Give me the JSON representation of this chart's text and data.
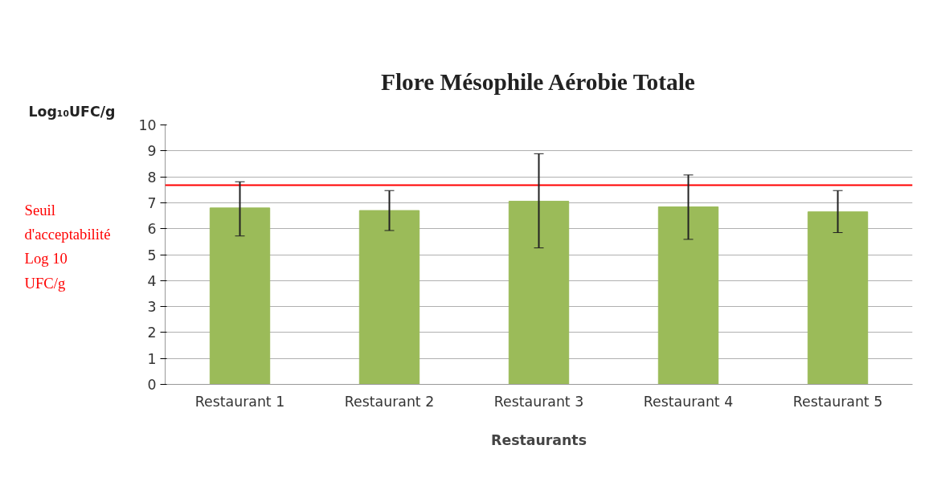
{
  "chart_data": {
    "type": "bar",
    "title": "Flore Mésophile Aérobie Totale",
    "xlabel": "Restaurants",
    "ylabel": "Log₁₀UFC/g",
    "categories": [
      "Restaurant 1",
      "Restaurant 2",
      "Restaurant 3",
      "Restaurant 4",
      "Restaurant 5"
    ],
    "values": [
      6.8,
      6.7,
      7.06,
      6.84,
      6.65
    ],
    "color": "#9bbb59",
    "errors": [
      [
        5.72,
        7.81
      ],
      [
        5.93,
        7.47
      ],
      [
        5.26,
        8.89
      ],
      [
        5.59,
        8.07
      ],
      [
        5.85,
        7.47
      ]
    ],
    "ylim": [
      0,
      10
    ],
    "yticks": [
      0,
      1,
      2,
      3,
      4,
      5,
      6,
      7,
      8,
      9,
      10
    ],
    "grid": "y",
    "ref_lines": [
      {
        "axis": "y",
        "value": 7.68,
        "label": "Seuil d'acceptabilité Log 10 UFC/g",
        "color": "#ff0000"
      }
    ]
  }
}
